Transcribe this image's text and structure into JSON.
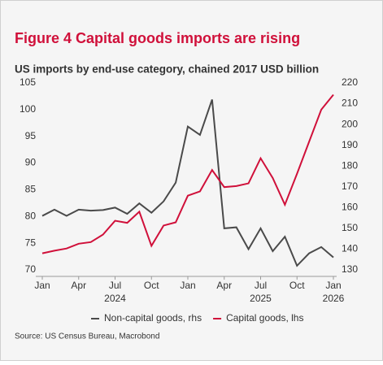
{
  "chart_data": {
    "type": "line",
    "title": "Figure 4 Capital goods imports are rising",
    "subtitle": "US imports by end-use category, chained 2017 USD billion",
    "source": "Source: US Census Bureau, Macrobond",
    "categories": [
      "Jan",
      null,
      null,
      "Apr",
      null,
      null,
      "Jul",
      null,
      null,
      "Oct",
      null,
      null,
      "Jan",
      null,
      null,
      "Apr",
      null,
      null,
      "Jul",
      null,
      null,
      "Oct",
      null,
      null,
      "Jan"
    ],
    "year_labels": [
      "2024",
      "2025",
      "2026"
    ],
    "series": [
      {
        "name": "Non-capital goods, rhs",
        "color": "#4a4a4a",
        "axis": "y2",
        "values": [
          156,
          159,
          156,
          159,
          158.5,
          158.8,
          160,
          157,
          162,
          157.5,
          163,
          172,
          199,
          195,
          212,
          150,
          150.5,
          140,
          150,
          139,
          146,
          132,
          138,
          141,
          136
        ]
      },
      {
        "name": "Capital goods, lhs",
        "color": "#d0103a",
        "values": [
          73.1,
          73.6,
          74.0,
          74.9,
          75.2,
          76.6,
          79.2,
          78.8,
          80.9,
          74.5,
          78.3,
          78.9,
          83.9,
          84.7,
          88.7,
          85.5,
          85.7,
          86.2,
          90.9,
          87.2,
          82.2,
          88,
          94,
          100,
          102.8
        ]
      }
    ],
    "ylim": [
      70,
      105
    ],
    "yticks": [
      70,
      75,
      80,
      85,
      90,
      95,
      100,
      105
    ],
    "y2lim": [
      130,
      220
    ],
    "y2ticks": [
      130,
      140,
      150,
      160,
      170,
      180,
      190,
      200,
      210,
      220
    ],
    "legend": "bottom"
  }
}
